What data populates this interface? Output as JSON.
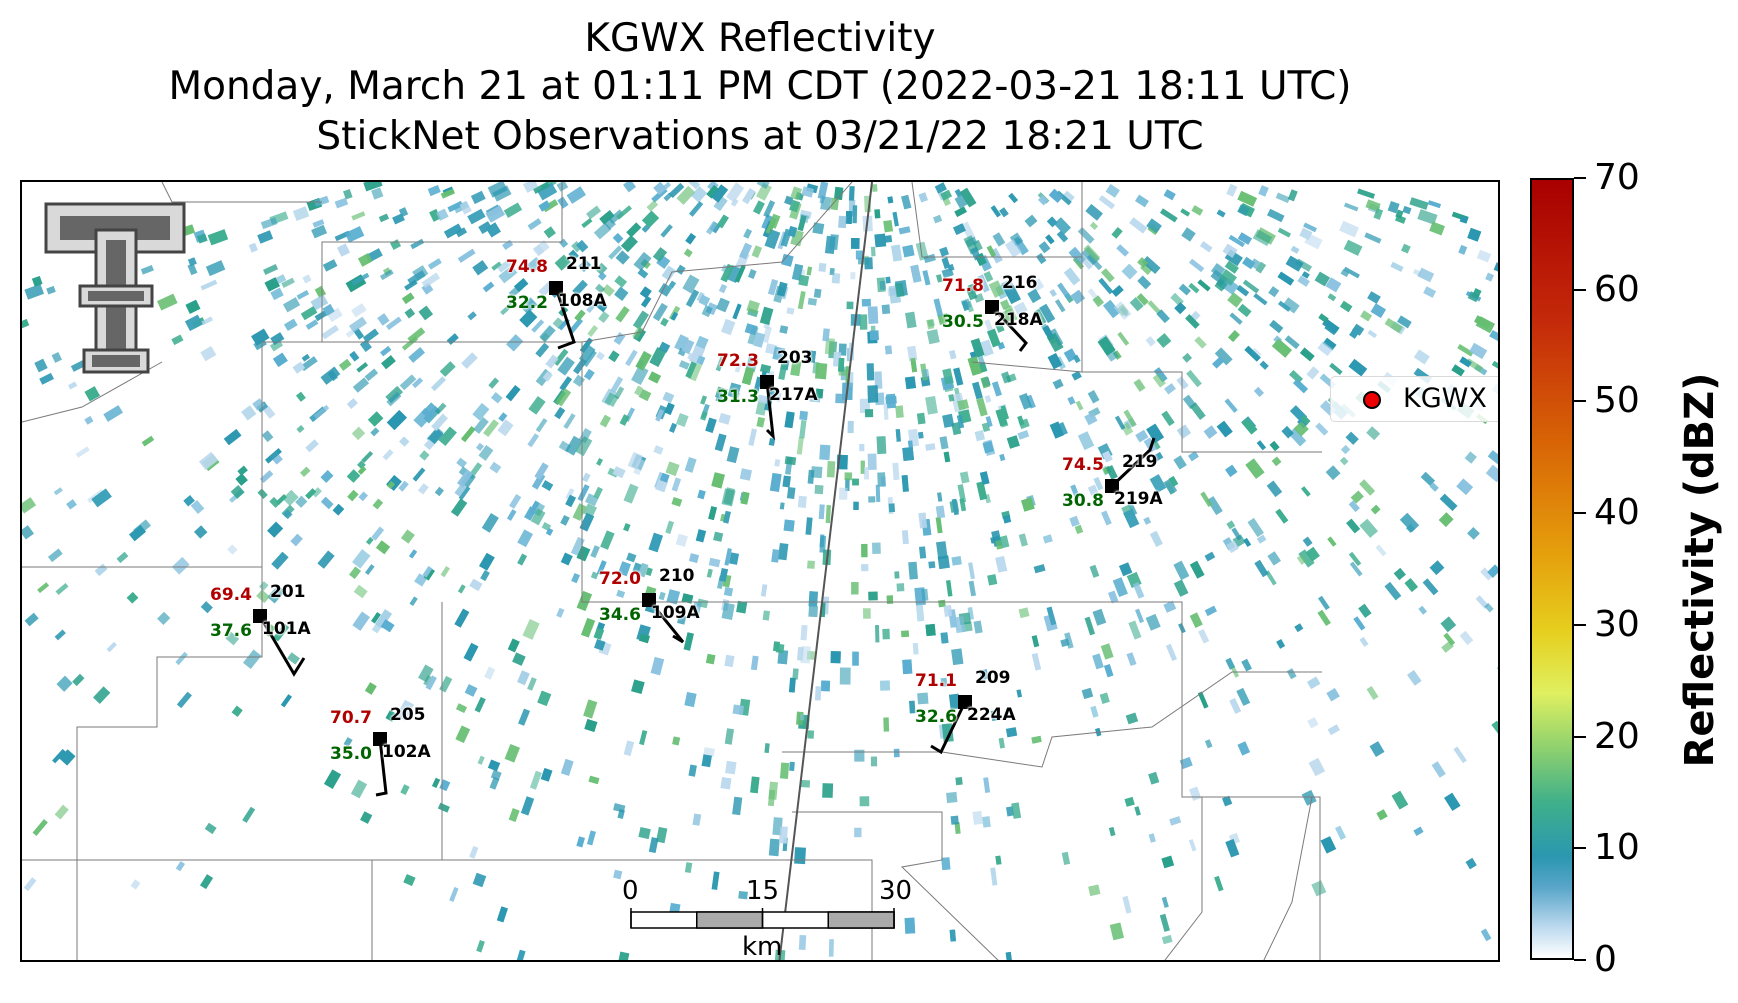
{
  "title": {
    "line1": "KGWX Reflectivity",
    "line2": "Monday, March 21 at 01:11 PM CDT (2022-03-21 18:11 UTC)",
    "line3": "StickNet Observations at 03/21/22 18:21 UTC"
  },
  "legend": {
    "label": "KGWX",
    "marker_color": "#ee0000"
  },
  "colorbar": {
    "label": "Reflectivity (dBZ)",
    "ticks": [
      "0",
      "10",
      "20",
      "30",
      "40",
      "50",
      "60",
      "70"
    ],
    "range": [
      0,
      70
    ]
  },
  "scale_bar": {
    "labels": [
      "0",
      "15",
      "30"
    ],
    "unit": "km"
  },
  "colors": {
    "temperature": "#b00000",
    "dewpoint": "#006400",
    "id": "#000000"
  },
  "stations": [
    {
      "id": "211",
      "sub_id": "108A",
      "temp": "74.8",
      "dew": "32.2"
    },
    {
      "id": "216",
      "sub_id": "218A",
      "temp": "71.8",
      "dew": "30.5"
    },
    {
      "id": "203",
      "sub_id": "217A",
      "temp": "72.3",
      "dew": "31.3"
    },
    {
      "id": "219",
      "sub_id": "219A",
      "temp": "74.5",
      "dew": "30.8"
    },
    {
      "id": "210",
      "sub_id": "109A",
      "temp": "72.0",
      "dew": "34.6"
    },
    {
      "id": "201",
      "sub_id": "101A",
      "temp": "69.4",
      "dew": "37.6"
    },
    {
      "id": "209",
      "sub_id": "224A",
      "temp": "71.1",
      "dew": "32.6"
    },
    {
      "id": "205",
      "sub_id": "102A",
      "temp": "70.7",
      "dew": "35.0"
    }
  ]
}
